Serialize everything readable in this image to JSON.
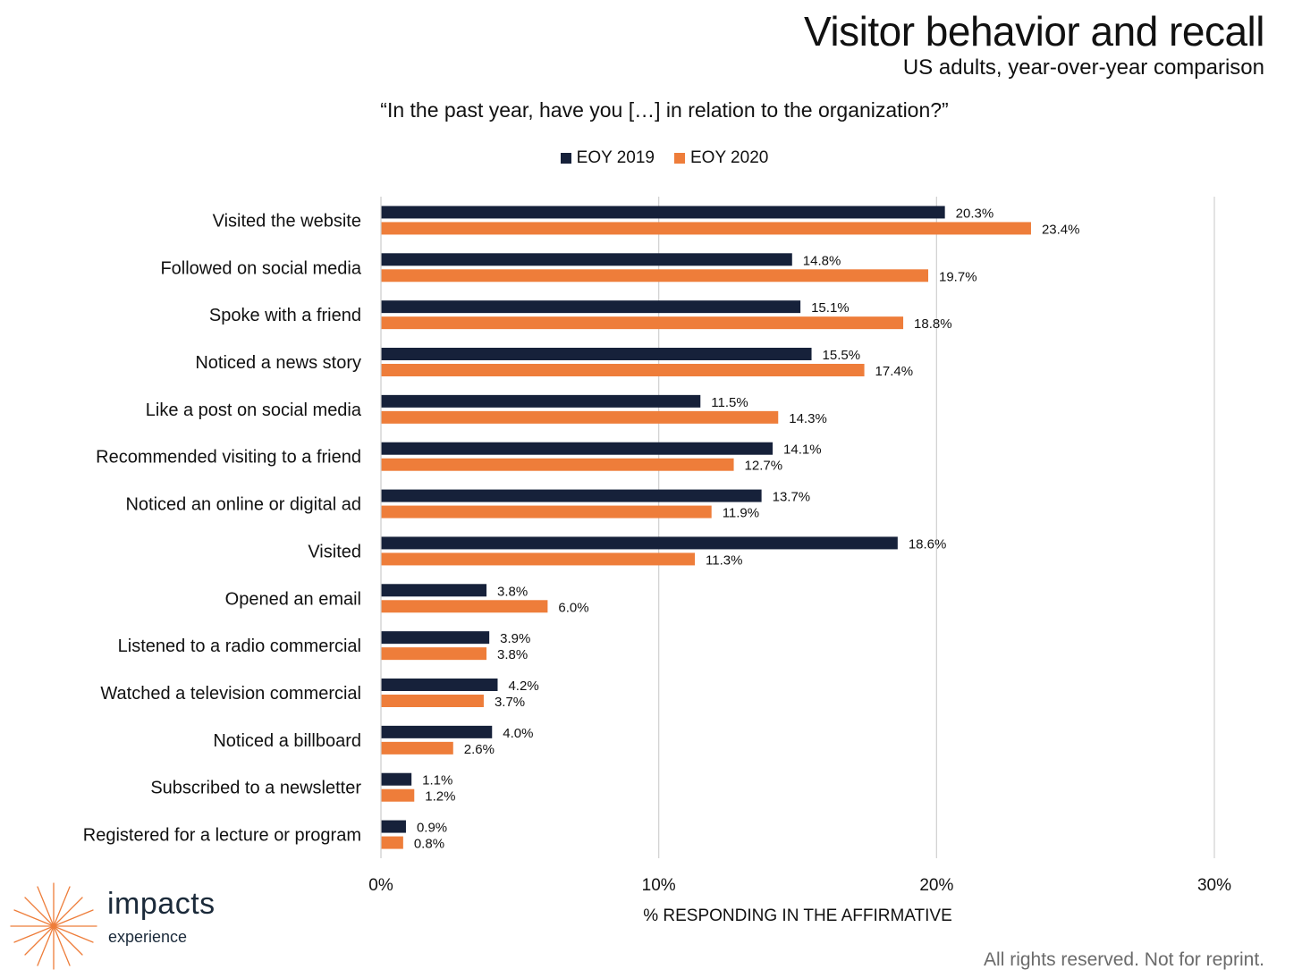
{
  "header": {
    "title": "Visitor behavior and recall",
    "subtitle": "US adults, year-over-year comparison",
    "question": "“In the past year, have you […] in relation to the organization?”"
  },
  "colors": {
    "series_2019": "#16213a",
    "series_2020": "#ee7d3a",
    "grid": "#d0d0d0",
    "logo_accent": "#ee7d3a"
  },
  "logo": {
    "name": "impacts",
    "sub": "experience",
    "icon": "starburst-icon"
  },
  "footer": {
    "text": "All rights reserved. Not for reprint."
  },
  "chart_data": {
    "type": "bar",
    "orientation": "horizontal",
    "title": "Visitor behavior and recall",
    "subtitle": "US adults, year-over-year comparison",
    "xlabel": "% RESPONDING IN THE AFFIRMATIVE",
    "ylabel": "",
    "xlim": [
      0,
      30
    ],
    "x_ticks": [
      "0%",
      "10%",
      "20%",
      "30%"
    ],
    "x_tick_values": [
      0,
      10,
      20,
      30
    ],
    "grid": true,
    "legend_position": "top-center",
    "categories": [
      "Visited the website",
      "Followed on social media",
      "Spoke with a friend",
      "Noticed a news story",
      "Like a post on social media",
      "Recommended visiting to a friend",
      "Noticed an online or digital ad",
      "Visited",
      "Opened an email",
      "Listened to a radio commercial",
      "Watched a television commercial",
      "Noticed a billboard",
      "Subscribed to a newsletter",
      "Registered for a lecture or program"
    ],
    "series": [
      {
        "name": "EOY 2019",
        "color": "#16213a",
        "values": [
          20.3,
          14.8,
          15.1,
          15.5,
          11.5,
          14.1,
          13.7,
          18.6,
          3.8,
          3.9,
          4.2,
          4.0,
          1.1,
          0.9
        ],
        "labels": [
          "20.3%",
          "14.8%",
          "15.1%",
          "15.5%",
          "11.5%",
          "14.1%",
          "13.7%",
          "18.6%",
          "3.8%",
          "3.9%",
          "4.2%",
          "4.0%",
          "1.1%",
          "0.9%"
        ]
      },
      {
        "name": "EOY 2020",
        "color": "#ee7d3a",
        "values": [
          23.4,
          19.7,
          18.8,
          17.4,
          14.3,
          12.7,
          11.9,
          11.3,
          6.0,
          3.8,
          3.7,
          2.6,
          1.2,
          0.8
        ],
        "labels": [
          "23.4%",
          "19.7%",
          "18.8%",
          "17.4%",
          "14.3%",
          "12.7%",
          "11.9%",
          "11.3%",
          "6.0%",
          "3.8%",
          "3.7%",
          "2.6%",
          "1.2%",
          "0.8%"
        ]
      }
    ]
  }
}
